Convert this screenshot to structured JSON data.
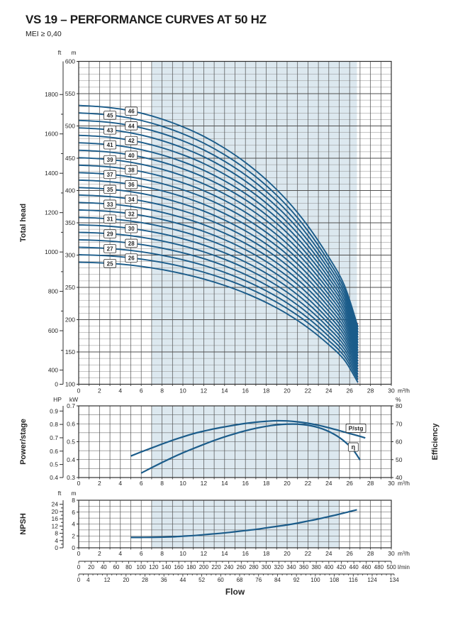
{
  "header": {
    "title": "VS 19 – PERFORMANCE CURVES AT 50 HZ",
    "subtitle": "MEI ≥ 0,40"
  },
  "colors": {
    "curve_blue": "#1b5c8a",
    "band": "#dce8ef",
    "grid": "#4f4f4f",
    "grid_light": "#8c8c8c",
    "border": "#2e2e2e",
    "text": "#262626",
    "label_box_fill": "#ffffff",
    "maxflow_line": "#8b3a3a"
  },
  "chart_data": {
    "main": {
      "type": "line",
      "y_axis_title": "Total head",
      "x_axis": {
        "unit": "m³/h",
        "min": 0,
        "max": 30,
        "ticks": [
          0,
          2,
          4,
          6,
          8,
          10,
          12,
          14,
          16,
          18,
          20,
          22,
          24,
          26,
          28,
          30
        ]
      },
      "y_axis_m": {
        "unit": "m",
        "min": 100,
        "max": 600,
        "ticks": [
          600,
          550,
          500,
          450,
          400,
          350,
          300,
          250,
          200,
          150,
          100
        ],
        "grid_minor_step": 10
      },
      "y_axis_ft": {
        "unit": "ft",
        "ticks": [
          1800,
          1600,
          1400,
          1200,
          1000,
          800,
          600,
          400,
          0
        ]
      },
      "operating_band_mh": [
        7,
        26.7
      ],
      "stages": [
        25,
        26,
        27,
        28,
        29,
        30,
        31,
        32,
        33,
        34,
        35,
        36,
        37,
        38,
        39,
        40,
        41,
        42,
        43,
        44,
        45,
        46
      ],
      "stage_curve": {
        "flow_mh": [
          0,
          2,
          4,
          6,
          8,
          10,
          12,
          14,
          16,
          18,
          20,
          22,
          24,
          25.5,
          26.8
        ],
        "head_per_stage_m": [
          11.56,
          11.52,
          11.44,
          11.3,
          11.1,
          10.84,
          10.52,
          10.12,
          9.64,
          9.06,
          8.36,
          7.5,
          6.45,
          5.5,
          4.1
        ]
      },
      "stage_label_columns_mh": {
        "odd": 3.0,
        "even": 5.05
      },
      "max_flow_line_mh": 26.8
    },
    "power_efficiency": {
      "type": "line",
      "left_axis_title": "Power/stage",
      "right_axis_title": "Efficiency",
      "x_axis": {
        "unit": "m³/h",
        "min": 0,
        "max": 30,
        "ticks": [
          0,
          2,
          4,
          6,
          8,
          10,
          12,
          14,
          16,
          18,
          20,
          22,
          24,
          26,
          28,
          30
        ]
      },
      "y_axis_kw": {
        "unit": "kW",
        "min": 0.3,
        "max": 0.7,
        "ticks": [
          0.7,
          0.6,
          0.5,
          0.4,
          0.3
        ],
        "grid_minor_step": 0.05
      },
      "y_axis_hp": {
        "unit": "HP",
        "ticks": [
          0.9,
          0.8,
          0.7,
          0.6,
          0.5,
          0.4
        ]
      },
      "y_axis_pct": {
        "unit": "%",
        "min": 40,
        "max": 80,
        "ticks": [
          80,
          70,
          60,
          50,
          40
        ]
      },
      "operating_band_mh": [
        7,
        25
      ],
      "series": [
        {
          "name": "P/stg",
          "unit": "kW",
          "points": [
            [
              5,
              0.42
            ],
            [
              6,
              0.443
            ],
            [
              7,
              0.465
            ],
            [
              8,
              0.487
            ],
            [
              9,
              0.508
            ],
            [
              10,
              0.527
            ],
            [
              11,
              0.545
            ],
            [
              12,
              0.559
            ],
            [
              13,
              0.572
            ],
            [
              14,
              0.583
            ],
            [
              15,
              0.593
            ],
            [
              16,
              0.602
            ],
            [
              17,
              0.609
            ],
            [
              18,
              0.614
            ],
            [
              19,
              0.617
            ],
            [
              20,
              0.616
            ],
            [
              21,
              0.611
            ],
            [
              22,
              0.603
            ],
            [
              23,
              0.592
            ],
            [
              24,
              0.578
            ],
            [
              25,
              0.562
            ],
            [
              26,
              0.546
            ],
            [
              27,
              0.53
            ],
            [
              27.5,
              0.521
            ]
          ]
        },
        {
          "name": "η",
          "unit": "%",
          "points": [
            [
              6,
              42.5
            ],
            [
              7,
              45.5
            ],
            [
              8,
              48.4
            ],
            [
              9,
              51.2
            ],
            [
              10,
              53.8
            ],
            [
              11,
              56.2
            ],
            [
              12,
              58.5
            ],
            [
              13,
              60.7
            ],
            [
              14,
              62.7
            ],
            [
              15,
              64.5
            ],
            [
              16,
              66.1
            ],
            [
              17,
              67.5
            ],
            [
              18,
              68.6
            ],
            [
              19,
              69.4
            ],
            [
              20,
              69.8
            ],
            [
              21,
              69.8
            ],
            [
              22,
              69.2
            ],
            [
              23,
              67.9
            ],
            [
              24,
              65.7
            ],
            [
              25,
              62.4
            ],
            [
              26,
              57.6
            ],
            [
              26.5,
              54.2
            ],
            [
              27,
              49.8
            ]
          ]
        }
      ],
      "series_label_positions": {
        "P/stg": [
          26.6,
          0.575
        ],
        "η": [
          26.35,
          57.0
        ]
      }
    },
    "npsh": {
      "type": "line",
      "y_axis_title": "NPSH",
      "x_axis": {
        "unit": "m³/h",
        "min": 0,
        "max": 30,
        "ticks": [
          0,
          2,
          4,
          6,
          8,
          10,
          12,
          14,
          16,
          18,
          20,
          22,
          24,
          26,
          28,
          30
        ]
      },
      "y_axis_m": {
        "unit": "m",
        "min": 0,
        "max": 8,
        "ticks": [
          8,
          6,
          4,
          2,
          0
        ],
        "grid_minor_step": 1
      },
      "y_axis_ft": {
        "unit": "ft",
        "ticks": [
          24,
          20,
          16,
          12,
          8,
          4,
          0
        ]
      },
      "operating_band_mh": [
        7,
        25
      ],
      "series": [
        {
          "name": "NPSH",
          "unit": "m",
          "points": [
            [
              5,
              1.75
            ],
            [
              6,
              1.75
            ],
            [
              7,
              1.76
            ],
            [
              8,
              1.8
            ],
            [
              9,
              1.85
            ],
            [
              10,
              1.95
            ],
            [
              11,
              2.05
            ],
            [
              12,
              2.2
            ],
            [
              13,
              2.35
            ],
            [
              14,
              2.5
            ],
            [
              15,
              2.7
            ],
            [
              16,
              2.9
            ],
            [
              17,
              3.1
            ],
            [
              18,
              3.35
            ],
            [
              19,
              3.6
            ],
            [
              20,
              3.85
            ],
            [
              21,
              4.15
            ],
            [
              22,
              4.5
            ],
            [
              23,
              4.85
            ],
            [
              24,
              5.25
            ],
            [
              25,
              5.65
            ],
            [
              26,
              6.1
            ],
            [
              26.7,
              6.4
            ]
          ]
        }
      ]
    },
    "flow_scales": {
      "title": "Flow",
      "m3h": {
        "unit": "m³/h"
      },
      "lmin": {
        "unit": "l/min",
        "max": 500,
        "ticks": [
          0,
          20,
          40,
          60,
          80,
          100,
          120,
          140,
          160,
          180,
          200,
          220,
          240,
          260,
          280,
          300,
          320,
          340,
          360,
          380,
          400,
          420,
          440,
          460,
          480,
          500
        ]
      },
      "gpm": {
        "ticks": [
          0,
          4,
          12,
          20,
          28,
          36,
          44,
          52,
          60,
          68,
          76,
          84,
          92,
          100,
          108,
          116,
          124,
          134
        ]
      }
    }
  }
}
